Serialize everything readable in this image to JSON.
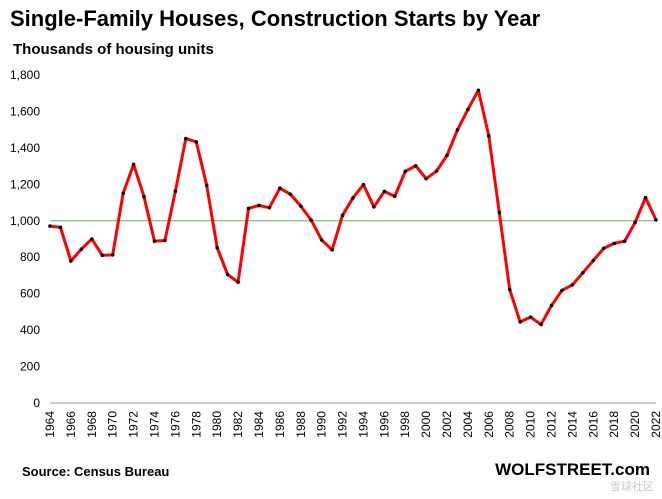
{
  "title": "Single-Family Houses, Construction  Starts by Year",
  "subtitle": "Thousands of housing units",
  "source": "Source: Census Bureau",
  "brand": "WOLFSTREET.com",
  "watermark": "雪球社区",
  "chart_data": {
    "type": "line",
    "ylim": [
      0,
      1800
    ],
    "yticks": [
      0,
      200,
      400,
      600,
      800,
      1000,
      1200,
      1400,
      1600,
      1800
    ],
    "ytick_labels": [
      "0",
      "200",
      "400",
      "600",
      "800",
      "1,000",
      "1,200",
      "1,400",
      "1,600",
      "1,800"
    ],
    "xtick_labels": [
      "1964",
      "1966",
      "1968",
      "1970",
      "1972",
      "1974",
      "1976",
      "1978",
      "1980",
      "1982",
      "1984",
      "1986",
      "1988",
      "1990",
      "1992",
      "1994",
      "1996",
      "1998",
      "2000",
      "2002",
      "2004",
      "2006",
      "2008",
      "2010",
      "2012",
      "2014",
      "2016",
      "2018",
      "2020",
      "2022"
    ],
    "reference_line": 1000,
    "line_color": "#ff0000",
    "marker_color": "#000000",
    "reference_line_color": "#5cb85c",
    "x": [
      1964,
      1965,
      1966,
      1967,
      1968,
      1969,
      1970,
      1971,
      1972,
      1973,
      1974,
      1975,
      1976,
      1977,
      1978,
      1979,
      1980,
      1981,
      1982,
      1983,
      1984,
      1985,
      1986,
      1987,
      1988,
      1989,
      1990,
      1991,
      1992,
      1993,
      1994,
      1995,
      1996,
      1997,
      1998,
      1999,
      2000,
      2001,
      2002,
      2003,
      2004,
      2005,
      2006,
      2007,
      2008,
      2009,
      2010,
      2011,
      2012,
      2013,
      2014,
      2015,
      2016,
      2017,
      2018,
      2019,
      2020,
      2021,
      2022
    ],
    "values": [
      971,
      964,
      779,
      844,
      900,
      811,
      813,
      1151,
      1309,
      1132,
      888,
      892,
      1162,
      1451,
      1433,
      1194,
      852,
      705,
      663,
      1068,
      1084,
      1072,
      1179,
      1146,
      1081,
      1003,
      895,
      840,
      1030,
      1126,
      1198,
      1076,
      1161,
      1134,
      1271,
      1302,
      1231,
      1273,
      1359,
      1499,
      1611,
      1716,
      1465,
      1046,
      622,
      445,
      471,
      431,
      535,
      618,
      648,
      715,
      782,
      849,
      876,
      888,
      991,
      1127,
      1005
    ]
  }
}
